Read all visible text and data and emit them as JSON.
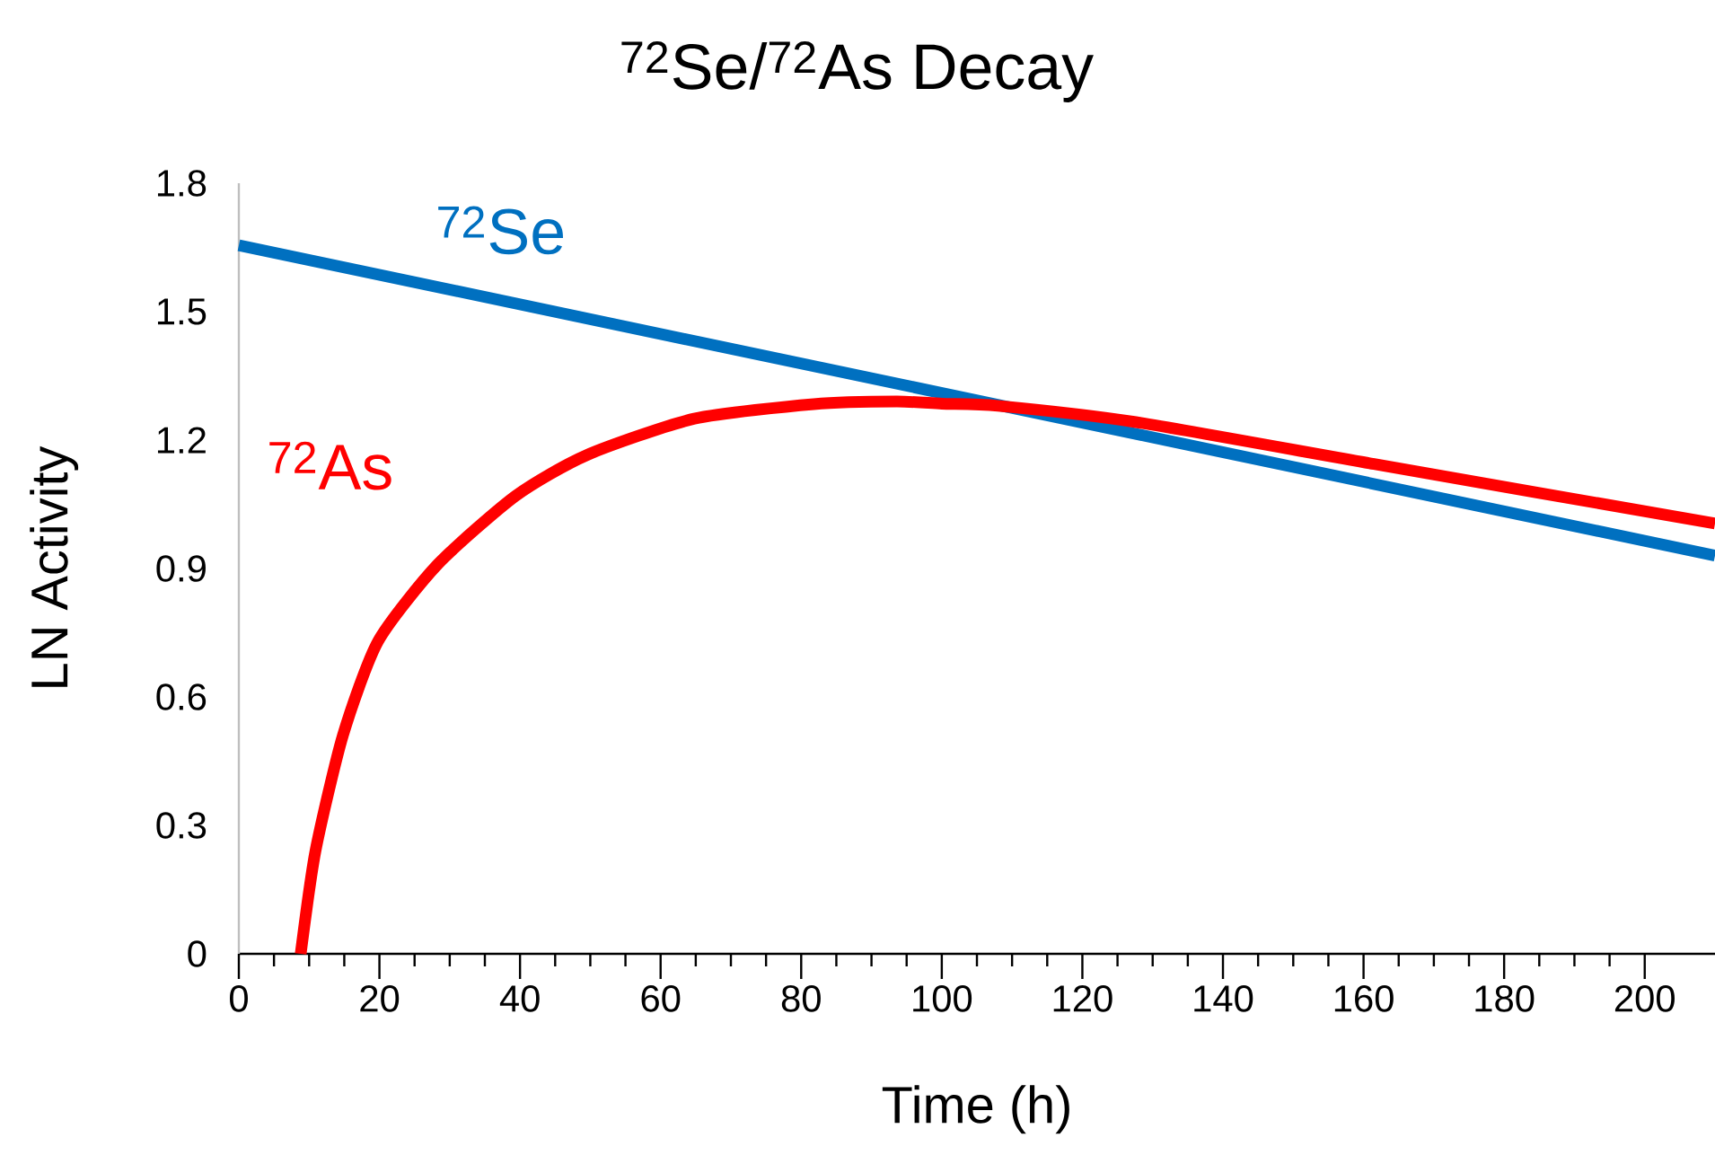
{
  "chart_data": {
    "type": "line",
    "title": "$^{72}$Se/$^{72}$As Decay",
    "xlabel": "Time (h)",
    "ylabel": "LN Activity",
    "xlim": [
      0,
      210
    ],
    "ylim": [
      0,
      1.8
    ],
    "xticks": [
      0,
      20,
      40,
      60,
      80,
      100,
      120,
      140,
      160,
      180,
      200
    ],
    "yticks": [
      0,
      0.3,
      0.6,
      0.9,
      1.2,
      1.5,
      1.8
    ],
    "grid": false,
    "legend": false,
    "marker": "none",
    "line_style": "solid",
    "series": [
      {
        "name": "$^{72}$Se",
        "color": "#0070c0",
        "x": [
          0,
          210
        ],
        "values": [
          1.655,
          0.93
        ]
      },
      {
        "name": "$^{72}$As",
        "color": "#ff0000",
        "x": [
          8.8,
          10.9,
          14.8,
          19.8,
          28.3,
          39.4,
          49.5,
          64.8,
          81.8,
          93.6,
          100,
          108,
          127.6,
          161.5,
          210
        ],
        "values": [
          0,
          0.24,
          0.51,
          0.73,
          0.91,
          1.07,
          1.165,
          1.25,
          1.284,
          1.29,
          1.285,
          1.28,
          1.242,
          1.144,
          1.005
        ]
      }
    ]
  }
}
